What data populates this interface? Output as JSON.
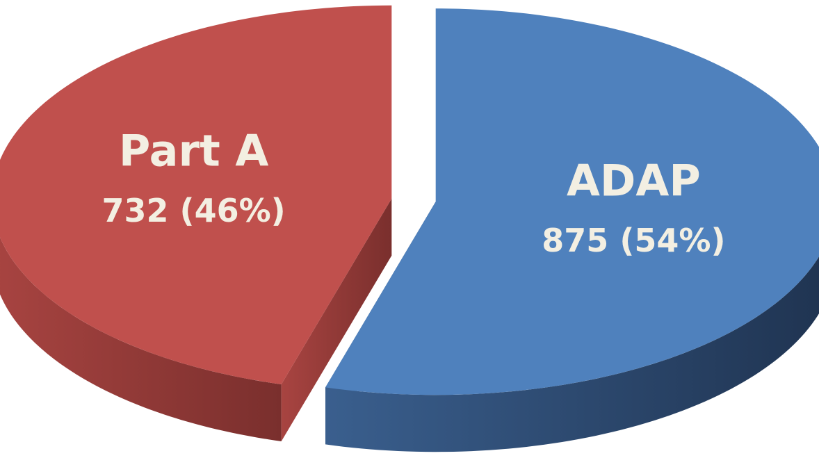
{
  "chart_data": {
    "type": "pie",
    "categories": [
      "Part A",
      "ADAP"
    ],
    "values": [
      732,
      875
    ],
    "value_labels": [
      "732 (46%)",
      "875 (54%)"
    ],
    "colors": [
      "#c0504d",
      "#4f81bd"
    ]
  }
}
